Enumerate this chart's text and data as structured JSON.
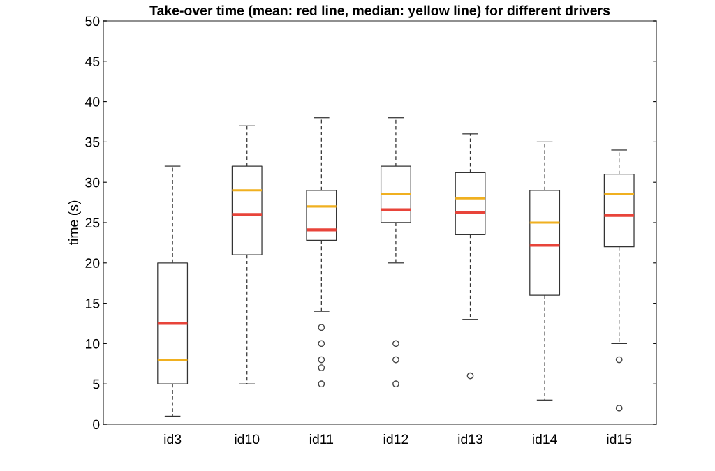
{
  "chart_data": {
    "type": "box",
    "title": "Take-over time (mean: red line, median: yellow line) for different drivers",
    "ylabel": "time (s)",
    "categories": [
      "id3",
      "id10",
      "id11",
      "id12",
      "id13",
      "id14",
      "id15"
    ],
    "boxes": [
      {
        "low": 1,
        "q1": 5,
        "median": 8,
        "q3": 20,
        "high": 32,
        "mean": 12.5
      },
      {
        "low": 5,
        "q1": 21,
        "median": 29,
        "q3": 32,
        "high": 37,
        "mean": 26
      },
      {
        "low": 14,
        "q1": 22.8,
        "median": 27,
        "q3": 29,
        "high": 38,
        "mean": 24.1,
        "outliers": [
          12,
          10,
          8,
          7,
          5
        ]
      },
      {
        "low": 20,
        "q1": 25,
        "median": 28.5,
        "q3": 32,
        "high": 38,
        "mean": 26.6,
        "outliers": [
          10,
          8,
          5
        ]
      },
      {
        "low": 13,
        "q1": 23.5,
        "median": 28,
        "q3": 31.2,
        "high": 36,
        "mean": 26.3,
        "outliers": [
          6
        ]
      },
      {
        "low": 3,
        "q1": 16,
        "median": 25,
        "q3": 29,
        "high": 35,
        "mean": 22.2
      },
      {
        "low": 10,
        "q1": 22,
        "median": 28.5,
        "q3": 31,
        "high": 34,
        "mean": 25.9,
        "outliers": [
          8,
          2
        ]
      }
    ],
    "ylim": [
      0,
      50
    ],
    "yticks": [
      0,
      5,
      10,
      15,
      20,
      25,
      30,
      35,
      40,
      45,
      50
    ],
    "grid": false,
    "legend": false
  }
}
